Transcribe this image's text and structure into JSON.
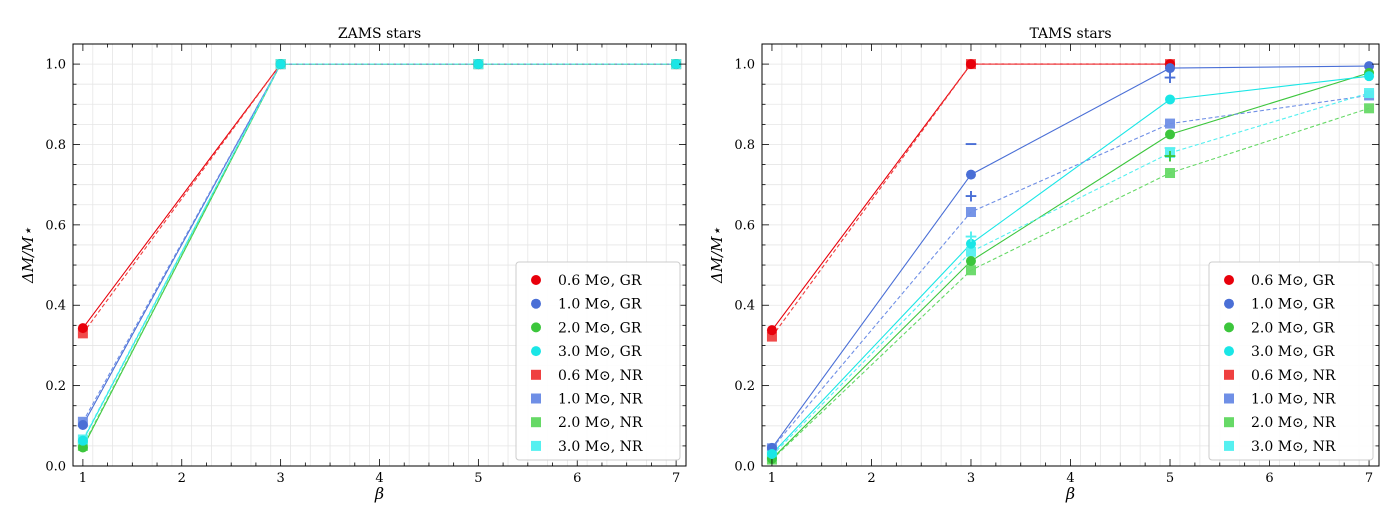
{
  "chart_data": [
    {
      "type": "line",
      "title": "ZAMS stars",
      "xlabel": "β",
      "ylabel": "ΔM/M⋆",
      "xlim": [
        0.9,
        7.1
      ],
      "ylim": [
        0.0,
        1.05
      ],
      "xticks": [
        1,
        2,
        3,
        4,
        5,
        6,
        7
      ],
      "yticks": [
        0.0,
        0.2,
        0.4,
        0.6,
        0.8,
        1.0
      ],
      "ytick_labels": [
        "0.0",
        "0.2",
        "0.4",
        "0.6",
        "0.8",
        "1.0"
      ],
      "grid": true,
      "legend_position": "lower-right",
      "series": [
        {
          "name": "0.6 M⊙, GR",
          "color": "#e8000b",
          "marker": "circle",
          "linestyle": "solid",
          "x": [
            1,
            3,
            5,
            7
          ],
          "values": [
            0.343,
            1.0,
            1.0,
            1.0
          ]
        },
        {
          "name": "1.0 M⊙, GR",
          "color": "#4a6fd6",
          "marker": "circle",
          "linestyle": "solid",
          "x": [
            1,
            3,
            5,
            7
          ],
          "values": [
            0.102,
            1.0,
            1.0,
            1.0
          ]
        },
        {
          "name": "2.0 M⊙, GR",
          "color": "#3cc63c",
          "marker": "circle",
          "linestyle": "solid",
          "x": [
            1,
            3,
            5,
            7
          ],
          "values": [
            0.046,
            1.0,
            1.0,
            1.0
          ]
        },
        {
          "name": "3.0 M⊙, GR",
          "color": "#1ae6e6",
          "marker": "circle",
          "linestyle": "solid",
          "x": [
            1,
            3,
            5,
            7
          ],
          "values": [
            0.063,
            1.0,
            1.0,
            1.0
          ]
        },
        {
          "name": "0.6 M⊙, NR",
          "color": "#ef4040",
          "marker": "square",
          "linestyle": "dashed",
          "x": [
            1,
            3,
            5,
            7
          ],
          "values": [
            0.33,
            1.0,
            1.0,
            1.0
          ]
        },
        {
          "name": "1.0 M⊙, NR",
          "color": "#6f8fe6",
          "marker": "square",
          "linestyle": "dashed",
          "x": [
            1,
            3,
            5,
            7
          ],
          "values": [
            0.11,
            1.0,
            1.0,
            1.0
          ]
        },
        {
          "name": "2.0 M⊙, NR",
          "color": "#66d966",
          "marker": "square",
          "linestyle": "dashed",
          "x": [
            1,
            3,
            5,
            7
          ],
          "values": [
            0.05,
            1.0,
            1.0,
            1.0
          ]
        },
        {
          "name": "3.0 M⊙, NR",
          "color": "#55f0f0",
          "marker": "square",
          "linestyle": "dashed",
          "x": [
            1,
            3,
            5,
            7
          ],
          "values": [
            0.066,
            1.0,
            1.0,
            1.0
          ]
        }
      ],
      "annotations": []
    },
    {
      "type": "line",
      "title": "TAMS stars",
      "xlabel": "β",
      "ylabel": "ΔM/M⋆",
      "xlim": [
        0.9,
        7.1
      ],
      "ylim": [
        0.0,
        1.05
      ],
      "xticks": [
        1,
        2,
        3,
        4,
        5,
        6,
        7
      ],
      "yticks": [
        0.0,
        0.2,
        0.4,
        0.6,
        0.8,
        1.0
      ],
      "ytick_labels": [
        "0.0",
        "0.2",
        "0.4",
        "0.6",
        "0.8",
        "1.0"
      ],
      "grid": true,
      "legend_position": "lower-right",
      "series": [
        {
          "name": "0.6 M⊙, GR",
          "color": "#e8000b",
          "marker": "circle",
          "linestyle": "solid",
          "x": [
            1,
            3,
            5
          ],
          "values": [
            0.338,
            1.0,
            1.0
          ]
        },
        {
          "name": "1.0 M⊙, GR",
          "color": "#4a6fd6",
          "marker": "circle",
          "linestyle": "solid",
          "x": [
            1,
            3,
            5,
            7
          ],
          "values": [
            0.045,
            0.725,
            0.99,
            0.995
          ]
        },
        {
          "name": "2.0 M⊙, GR",
          "color": "#3cc63c",
          "marker": "circle",
          "linestyle": "solid",
          "x": [
            1,
            3,
            5,
            7
          ],
          "values": [
            0.018,
            0.51,
            0.825,
            0.978
          ]
        },
        {
          "name": "3.0 M⊙, GR",
          "color": "#1ae6e6",
          "marker": "circle",
          "linestyle": "solid",
          "x": [
            1,
            3,
            5,
            7
          ],
          "values": [
            0.03,
            0.553,
            0.912,
            0.97
          ]
        },
        {
          "name": "0.6 M⊙, NR",
          "color": "#ef4040",
          "marker": "square",
          "linestyle": "dashed",
          "x": [
            1,
            3,
            5
          ],
          "values": [
            0.322,
            1.0,
            1.0
          ]
        },
        {
          "name": "1.0 M⊙, NR",
          "color": "#6f8fe6",
          "marker": "square",
          "linestyle": "dashed",
          "x": [
            1,
            3,
            5,
            7
          ],
          "values": [
            0.044,
            0.632,
            0.852,
            0.922
          ]
        },
        {
          "name": "2.0 M⊙, NR",
          "color": "#66d966",
          "marker": "square",
          "linestyle": "dashed",
          "x": [
            1,
            3,
            5,
            7
          ],
          "values": [
            0.016,
            0.487,
            0.729,
            0.89
          ]
        },
        {
          "name": "3.0 M⊙, NR",
          "color": "#55f0f0",
          "marker": "square",
          "linestyle": "dashed",
          "x": [
            1,
            3,
            5,
            7
          ],
          "values": [
            0.026,
            0.533,
            0.779,
            0.928
          ]
        }
      ],
      "annotations": [
        {
          "text": "−",
          "color": "#4a6fd6",
          "x": 3,
          "y": 0.8
        },
        {
          "text": "+",
          "color": "#4a6fd6",
          "x": 3,
          "y": 0.67
        },
        {
          "text": "+",
          "color": "#4a6fd6",
          "x": 5,
          "y": 0.965
        },
        {
          "text": "+",
          "color": "#3cc63c",
          "x": 5,
          "y": 0.77
        },
        {
          "text": "+",
          "color": "#55f0f0",
          "x": 3,
          "y": 0.57
        },
        {
          "text": "−",
          "color": "#55f0f0",
          "x": 5,
          "y": 0.79
        }
      ]
    }
  ]
}
